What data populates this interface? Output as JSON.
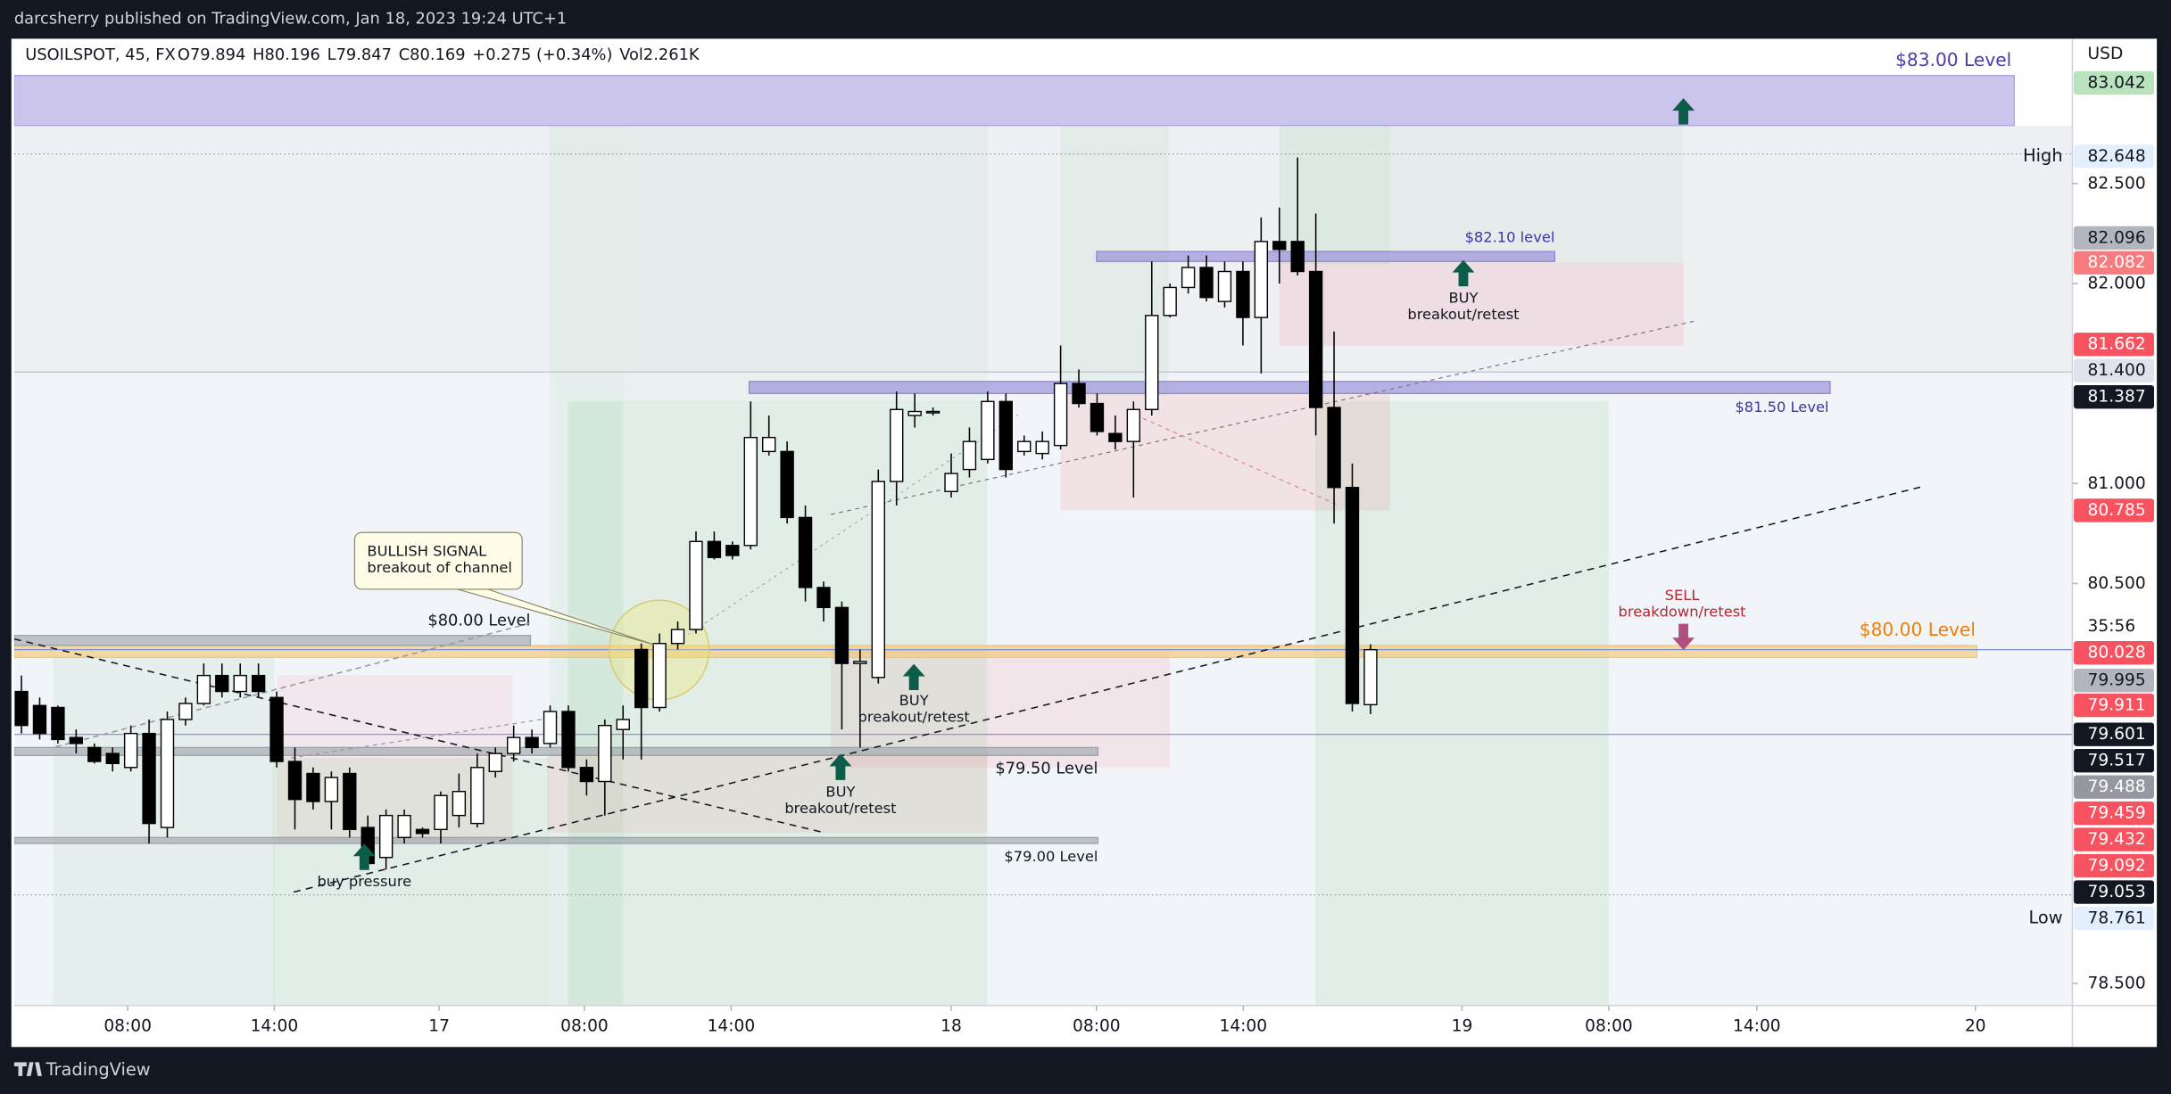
{
  "chart_data": {
    "type": "candlestick",
    "published": "darcsherry published on TradingView.com, Jan 18, 2023 19:24 UTC+1",
    "symbol": "USOILSPOT, 45, FX",
    "legend": [
      "O79.894",
      "H80.196",
      "L79.847",
      "C80.169",
      "+0.275 (+0.34%)",
      "Vol2.261K"
    ],
    "currency": "USD",
    "brand": "TradingView",
    "open": [
      79.96,
      79.89,
      79.88,
      79.73,
      79.68,
      79.65,
      79.58,
      79.75,
      79.28,
      79.82,
      79.9,
      80.04,
      79.96,
      80.04,
      79.93,
      79.61,
      79.55,
      79.41,
      79.55,
      79.28,
      79.13,
      79.23,
      79.27,
      79.27,
      79.34,
      79.3,
      79.56,
      79.65,
      79.73,
      79.7,
      79.86,
      79.58,
      79.51,
      79.77,
      80.17,
      79.88,
      80.2,
      80.27,
      80.71,
      80.69,
      80.69,
      81.16,
      81.16,
      80.83,
      80.48,
      80.38,
      80.1,
      80.03,
      81.01,
      81.34,
      81.36,
      80.96,
      81.07,
      81.12,
      81.41,
      81.16,
      81.15,
      81.19,
      81.5,
      81.4,
      81.25,
      81.21,
      81.37,
      81.84,
      81.98,
      82.08,
      81.91,
      82.06,
      81.83,
      82.21,
      82.21,
      82.06,
      81.38,
      80.98,
      79.894
    ],
    "high": [
      80.04,
      79.93,
      79.89,
      79.77,
      79.7,
      79.68,
      79.79,
      79.82,
      79.86,
      79.93,
      80.1,
      80.1,
      80.1,
      80.1,
      79.96,
      79.68,
      79.58,
      79.56,
      79.58,
      79.34,
      79.37,
      79.37,
      79.28,
      79.46,
      79.55,
      79.65,
      79.68,
      79.79,
      79.77,
      79.89,
      79.89,
      79.62,
      79.82,
      79.89,
      80.2,
      80.25,
      80.31,
      80.76,
      80.76,
      80.71,
      81.41,
      81.34,
      81.21,
      80.89,
      80.51,
      80.41,
      80.17,
      81.07,
      81.46,
      81.45,
      81.38,
      81.15,
      81.28,
      81.46,
      81.45,
      81.24,
      81.26,
      81.69,
      81.57,
      81.45,
      81.34,
      81.41,
      82.11,
      82.0,
      82.14,
      82.14,
      82.11,
      82.11,
      82.33,
      82.38,
      82.63,
      82.35,
      81.76,
      81.1,
      80.196
    ],
    "low": [
      79.75,
      79.72,
      79.7,
      79.65,
      79.6,
      79.56,
      79.56,
      79.2,
      79.23,
      79.79,
      79.89,
      79.93,
      79.93,
      79.93,
      79.58,
      79.27,
      79.37,
      79.27,
      79.23,
      79.07,
      79.07,
      79.2,
      79.23,
      79.2,
      79.28,
      79.28,
      79.53,
      79.61,
      79.65,
      79.68,
      79.56,
      79.44,
      79.34,
      79.62,
      79.62,
      79.86,
      80.17,
      80.25,
      80.62,
      80.62,
      80.67,
      81.14,
      80.8,
      80.41,
      80.31,
      79.77,
      79.68,
      80.0,
      80.89,
      81.28,
      81.34,
      80.93,
      81.03,
      81.1,
      81.03,
      81.14,
      81.12,
      81.17,
      81.38,
      81.24,
      81.17,
      80.93,
      81.34,
      81.83,
      81.95,
      81.91,
      81.88,
      81.69,
      81.55,
      82.0,
      82.04,
      81.24,
      80.8,
      79.86,
      79.847
    ],
    "close": [
      79.79,
      79.75,
      79.72,
      79.7,
      79.61,
      79.6,
      79.75,
      79.3,
      79.82,
      79.9,
      80.04,
      79.96,
      80.04,
      79.96,
      79.61,
      79.42,
      79.41,
      79.53,
      79.27,
      79.1,
      79.34,
      79.34,
      79.25,
      79.44,
      79.46,
      79.58,
      79.65,
      79.73,
      79.68,
      79.86,
      79.58,
      79.51,
      79.79,
      79.82,
      79.88,
      80.2,
      80.27,
      80.71,
      80.63,
      80.64,
      81.23,
      81.23,
      80.83,
      80.48,
      80.38,
      80.1,
      80.11,
      81.01,
      81.37,
      81.36,
      81.36,
      81.05,
      81.21,
      81.41,
      81.07,
      81.21,
      81.21,
      81.5,
      81.4,
      81.26,
      81.21,
      81.37,
      81.84,
      81.98,
      82.08,
      81.93,
      82.06,
      81.83,
      82.21,
      82.17,
      82.06,
      81.38,
      80.98,
      79.9,
      80.169
    ],
    "up_color": "#ffffff",
    "down_color": "#000000",
    "xlim": [
      -0.4,
      112.5
    ],
    "xticks": [
      {
        "value": 5.83,
        "label": "08:00"
      },
      {
        "value": 13.87,
        "label": "14:00"
      },
      {
        "value": 22.91,
        "label": "17"
      },
      {
        "value": 30.88,
        "label": "08:00"
      },
      {
        "value": 38.93,
        "label": "14:00"
      },
      {
        "value": 51.0,
        "label": "18"
      },
      {
        "value": 58.97,
        "label": "08:00"
      },
      {
        "value": 67.02,
        "label": "14:00"
      },
      {
        "value": 79.02,
        "label": "19"
      },
      {
        "value": 87.07,
        "label": "08:00"
      },
      {
        "value": 95.19,
        "label": "14:00"
      },
      {
        "value": 107.18,
        "label": "20"
      }
    ],
    "ylim": [
      78.39,
      83.21
    ],
    "yticks": [
      {
        "value": 82.5,
        "label": "82.500"
      },
      {
        "value": 82.0,
        "label": "82.000"
      },
      {
        "value": 81.0,
        "label": "81.000"
      },
      {
        "value": 80.5,
        "label": "80.500"
      },
      {
        "value": 78.5,
        "label": "78.500"
      }
    ],
    "countdown": "35:56",
    "price_labels": [
      {
        "value": 83.042,
        "label": "83.042",
        "bg": "#b9e3bc",
        "fg": "#131722"
      },
      {
        "value": 82.648,
        "label": "82.648",
        "bg": "#e3effd",
        "fg": "#131722",
        "tag": "High"
      },
      {
        "value": 82.096,
        "label": "82.096",
        "bg": "#b2b5be",
        "fg": "#131722"
      },
      {
        "value": 82.082,
        "label": "82.082",
        "bg": "#f77c80",
        "fg": "#ffffff"
      },
      {
        "value": 81.662,
        "label": "81.662",
        "bg": "#f7525f",
        "fg": "#ffffff"
      },
      {
        "value": 81.4,
        "label": "81.400",
        "bg": "#e0e3eb",
        "fg": "#131722"
      },
      {
        "value": 81.387,
        "label": "81.387",
        "bg": "#131722",
        "fg": "#ffffff"
      },
      {
        "value": 80.785,
        "label": "80.785",
        "bg": "#f7525f",
        "fg": "#ffffff"
      },
      {
        "value": 80.028,
        "label": "80.028",
        "bg": "#f7525f",
        "fg": "#ffffff"
      },
      {
        "value": 79.995,
        "label": "79.995",
        "bg": "#b2b5be",
        "fg": "#131722"
      },
      {
        "value": 79.911,
        "label": "79.911",
        "bg": "#f7525f",
        "fg": "#ffffff"
      },
      {
        "value": 79.601,
        "label": "79.601",
        "bg": "#131722",
        "fg": "#ffffff"
      },
      {
        "value": 79.517,
        "label": "79.517",
        "bg": "#131722",
        "fg": "#ffffff"
      },
      {
        "value": 79.488,
        "label": "79.488",
        "bg": "#9598a1",
        "fg": "#ffffff"
      },
      {
        "value": 79.459,
        "label": "79.459",
        "bg": "#f7525f",
        "fg": "#ffffff"
      },
      {
        "value": 79.432,
        "label": "79.432",
        "bg": "#f7525f",
        "fg": "#ffffff"
      },
      {
        "value": 79.092,
        "label": "79.092",
        "bg": "#f7525f",
        "fg": "#ffffff"
      },
      {
        "value": 79.053,
        "label": "79.053",
        "bg": "#131722",
        "fg": "#ffffff"
      },
      {
        "value": 78.761,
        "label": "78.761",
        "bg": "#e3effd",
        "fg": "#131722",
        "tag": "Low"
      }
    ],
    "levels": [
      {
        "label": "$83.00 Level",
        "range": [
          82.79,
          83.04
        ],
        "color": "#a99fdf",
        "label_color": "#4a3ea8"
      },
      {
        "label": "$82.10 level",
        "range": [
          82.11,
          82.16
        ],
        "color": "#8f84d3",
        "label_color": "#3d35a0"
      },
      {
        "label": "$81.50 Level",
        "range": [
          81.45,
          81.51
        ],
        "color": "#8f84d3",
        "label_color": "#3d35a0"
      },
      {
        "label": "$80.00 Level",
        "range": [
          80.13,
          80.19
        ],
        "color": "#f5c56b",
        "label_color": "#f57c00"
      },
      {
        "label": "$80.00 Level",
        "range": [
          80.19,
          80.24
        ],
        "color": "#9aa0a6",
        "label_color": "#131722"
      },
      {
        "label": "$79.50 Level",
        "range": [
          79.64,
          79.68
        ],
        "color": "#9aa0a6",
        "label_color": "#131722"
      },
      {
        "label": "$79.00 Level",
        "range": [
          79.2,
          79.23
        ],
        "color": "#9aa0a6",
        "label_color": "#131722"
      }
    ],
    "annotations": [
      {
        "lines": [
          "BULLISH SIGNAL",
          "breakout of channel"
        ],
        "color": "#131722"
      },
      {
        "lines": [
          "BUY",
          "breakout/retest"
        ],
        "color": "#131722"
      },
      {
        "lines": [
          "BUY",
          "breakout/retest"
        ],
        "color": "#131722"
      },
      {
        "lines": [
          "buy pressure"
        ],
        "color": "#131722"
      },
      {
        "lines": [
          "BUY",
          "breakout/retest"
        ],
        "color": "#131722"
      },
      {
        "lines": [
          "SELL",
          "breakdown/retest"
        ],
        "color": "#b22833"
      }
    ]
  }
}
